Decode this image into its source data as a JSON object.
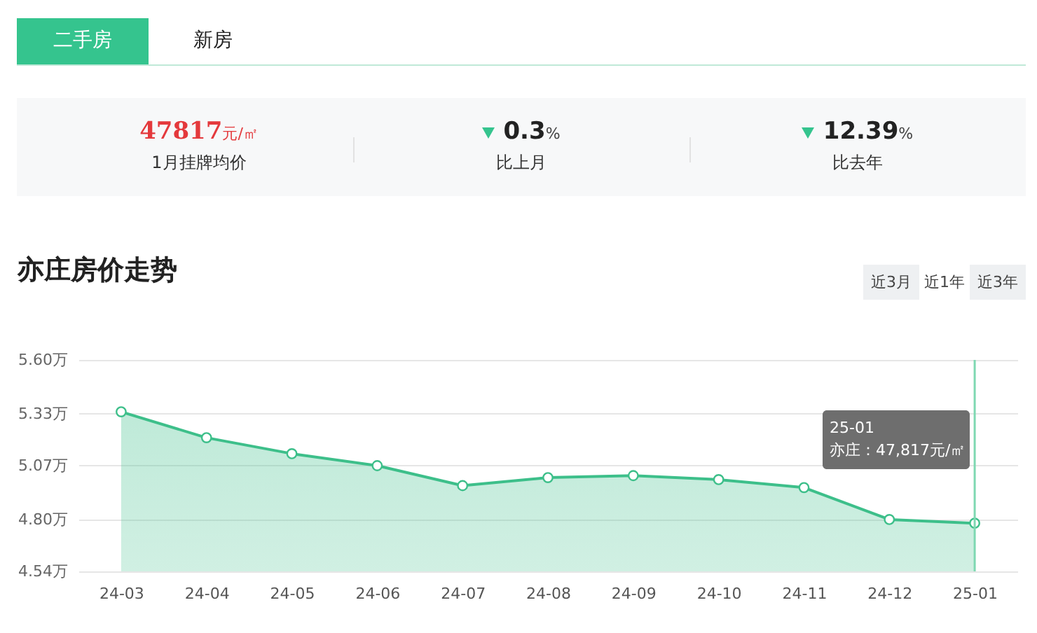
{
  "chart_data": {
    "type": "area",
    "title": "亦庄房价走势",
    "categories": [
      "24-03",
      "24-04",
      "24-05",
      "24-06",
      "24-07",
      "24-08",
      "24-09",
      "24-10",
      "24-11",
      "24-12",
      "25-01"
    ],
    "series": [
      {
        "color": "#3dbf8a",
        "values": [
          5.34,
          5.21,
          5.13,
          5.07,
          4.97,
          5.01,
          5.02,
          5.0,
          4.96,
          4.8,
          4.7817
        ]
      }
    ],
    "ylim": [
      4.54,
      5.6
    ],
    "yticks": [
      {
        "value": 4.54,
        "label": "4.54万"
      },
      {
        "value": 4.8,
        "label": "4.80万"
      },
      {
        "value": 5.07,
        "label": "5.07万"
      },
      {
        "value": 5.33,
        "label": "5.33万"
      },
      {
        "value": 5.6,
        "label": "5.60万"
      }
    ],
    "grid": "y",
    "marker": "circle",
    "line_style": "solid",
    "ref_lines": [
      {
        "axis": "x",
        "value": "25-01",
        "color": "#7fd8b2"
      }
    ],
    "annotations": [
      "二手房",
      "新房",
      "47817元/㎡",
      "1月挂牌均价",
      "0.3%",
      "比上月",
      "12.39%",
      "比去年",
      "近3月",
      "近1年",
      "近3年",
      "25-01\n亦庄：47,817元/㎡"
    ]
  }
}
